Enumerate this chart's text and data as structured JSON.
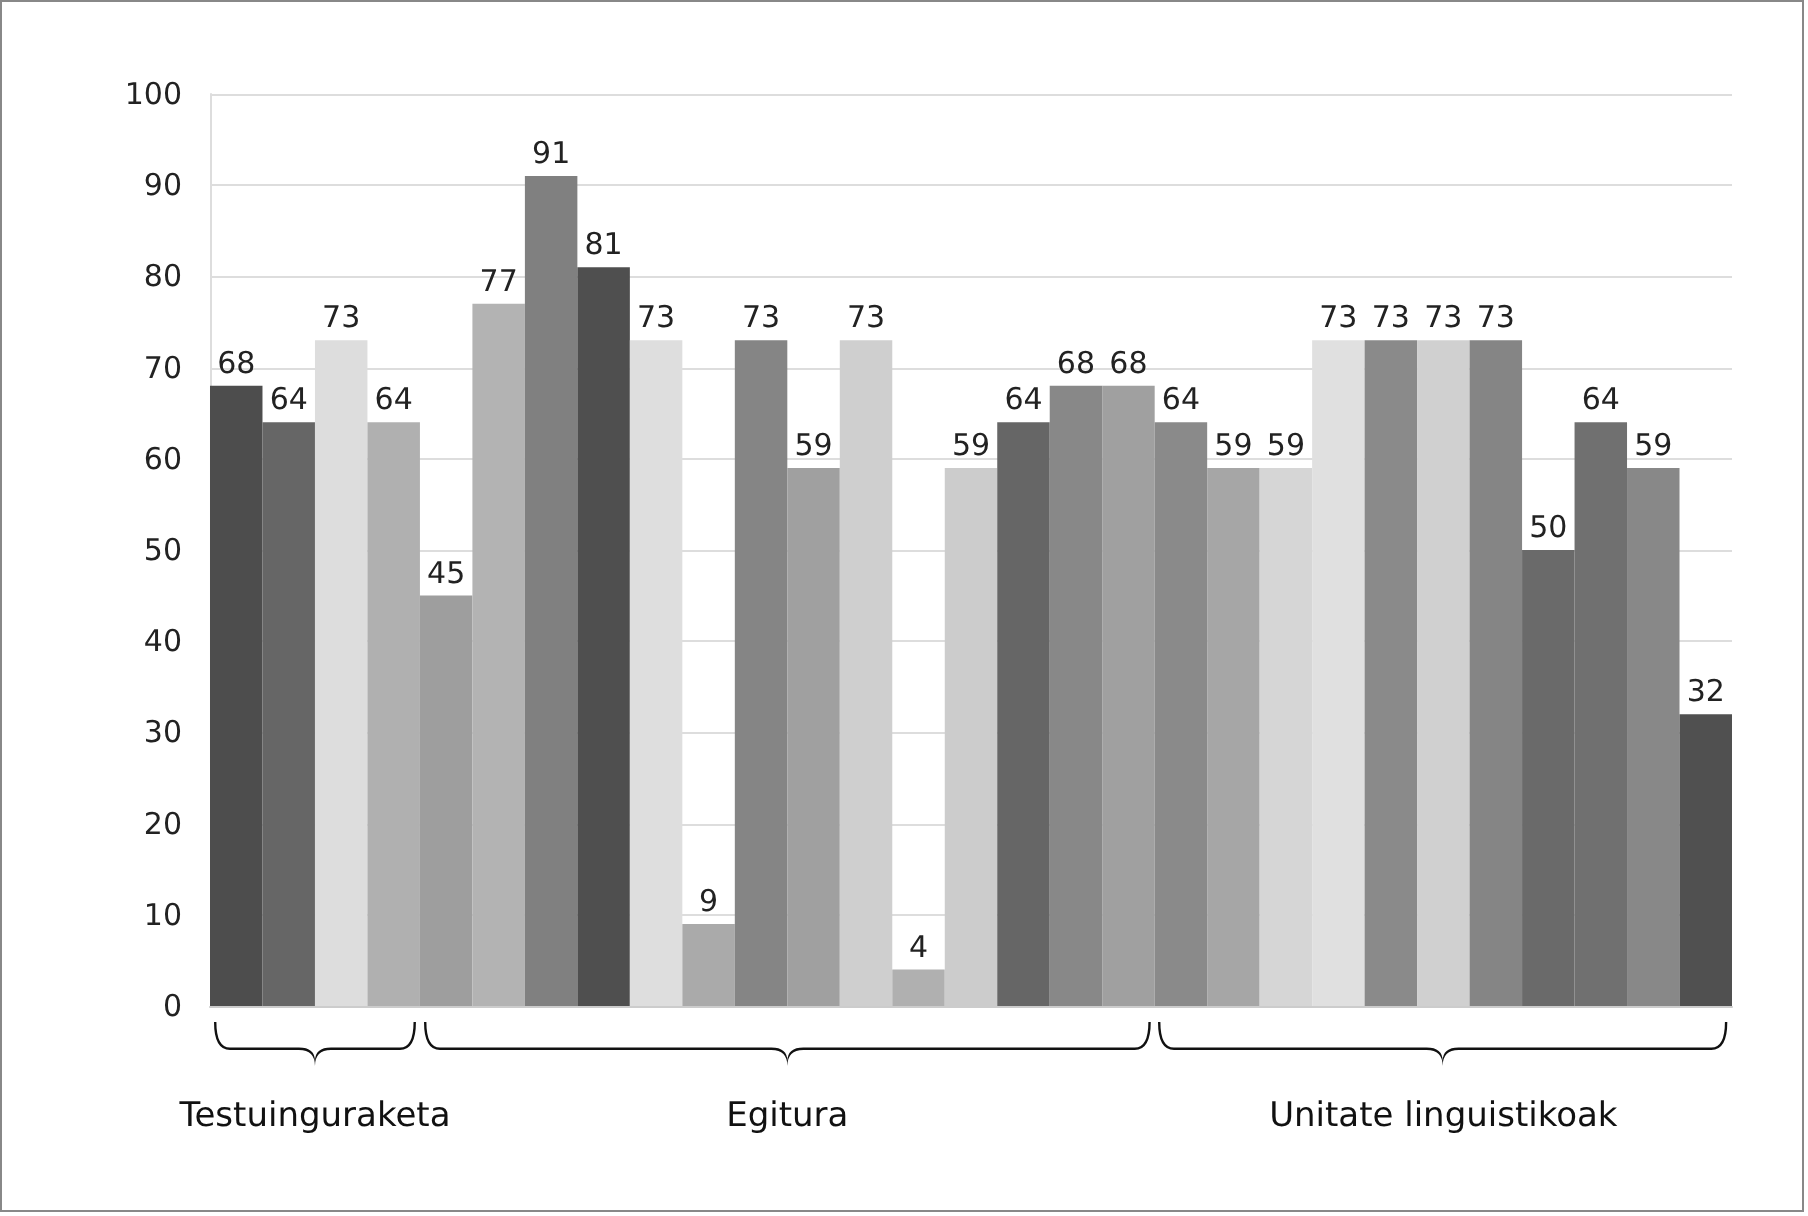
{
  "chart_data": {
    "type": "bar",
    "categories": [
      null,
      null,
      null,
      null,
      null,
      null,
      null,
      null,
      null,
      null,
      null,
      null,
      null,
      null,
      null,
      null,
      null,
      null,
      null,
      null,
      null,
      null,
      null,
      null,
      null,
      null,
      null,
      null,
      null
    ],
    "values": [
      68,
      64,
      73,
      64,
      45,
      77,
      91,
      81,
      73,
      9,
      73,
      59,
      73,
      4,
      59,
      64,
      68,
      68,
      64,
      59,
      59,
      73,
      73,
      73,
      73,
      50,
      64,
      59,
      32
    ],
    "colors": [
      "#4d4d4d",
      "#666666",
      "#dddddd",
      "#b0b0b0",
      "#9e9e9e",
      "#b3b3b3",
      "#808080",
      "#4f4f4f",
      "#dedede",
      "#aaaaaa",
      "#858585",
      "#a0a0a0",
      "#cfcfcf",
      "#b0b0b0",
      "#cccccc",
      "#666666",
      "#888888",
      "#a0a0a0",
      "#8a8a8a",
      "#a6a6a6",
      "#d6d6d6",
      "#e0e0e0",
      "#8a8a8a",
      "#d0d0d0",
      "#858585",
      "#6a6a6a",
      "#707070",
      "#888888",
      "#505050"
    ],
    "ylim": [
      0,
      100
    ],
    "yticks": [
      0,
      10,
      20,
      30,
      40,
      50,
      60,
      70,
      80,
      90,
      100
    ],
    "grid": "y",
    "data_labels": true,
    "annotations": [
      "Testuinguraketa",
      "Egitura",
      "Unitate linguistikoak"
    ]
  }
}
